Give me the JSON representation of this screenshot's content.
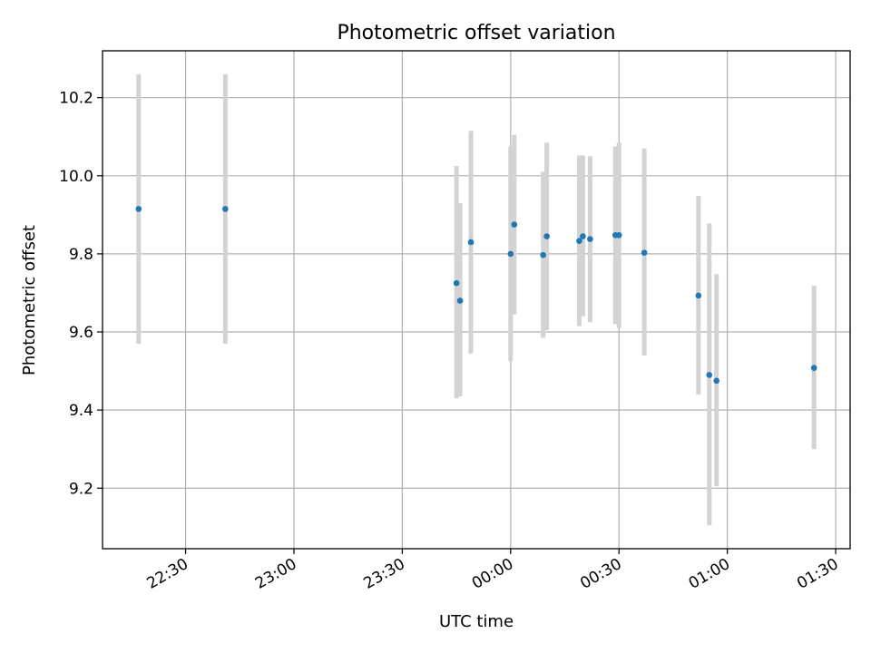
{
  "chart_data": {
    "type": "scatter",
    "title": "Photometric offset variation",
    "xlabel": "UTC time",
    "ylabel": "Photometric offset",
    "xlim": [
      "22:07",
      "01:34"
    ],
    "ylim": [
      9.045,
      10.32
    ],
    "x_ticks": [
      "22:30",
      "23:00",
      "23:30",
      "00:00",
      "00:30",
      "01:00",
      "01:30"
    ],
    "y_ticks": [
      9.2,
      9.4,
      9.6,
      9.8,
      10.0,
      10.2
    ],
    "grid": true,
    "colors": {
      "point": "#1f77b4",
      "errorbar": "#d3d3d3",
      "grid": "#b0b0b0"
    },
    "points": [
      {
        "x": "22:17",
        "y": 9.915,
        "yerr_low": 9.57,
        "yerr_high": 10.26
      },
      {
        "x": "22:41",
        "y": 9.915,
        "yerr_low": 9.57,
        "yerr_high": 10.26
      },
      {
        "x": "23:45",
        "y": 9.725,
        "yerr_low": 9.43,
        "yerr_high": 10.025
      },
      {
        "x": "23:46",
        "y": 9.68,
        "yerr_low": 9.435,
        "yerr_high": 9.93
      },
      {
        "x": "23:49",
        "y": 9.83,
        "yerr_low": 9.545,
        "yerr_high": 10.115
      },
      {
        "x": "00:00",
        "y": 9.8,
        "yerr_low": 9.525,
        "yerr_high": 10.075
      },
      {
        "x": "00:01",
        "y": 9.875,
        "yerr_low": 9.645,
        "yerr_high": 10.105
      },
      {
        "x": "00:09",
        "y": 9.797,
        "yerr_low": 9.585,
        "yerr_high": 10.01
      },
      {
        "x": "00:10",
        "y": 9.845,
        "yerr_low": 9.605,
        "yerr_high": 10.085
      },
      {
        "x": "00:19",
        "y": 9.833,
        "yerr_low": 9.615,
        "yerr_high": 10.052
      },
      {
        "x": "00:20",
        "y": 9.845,
        "yerr_low": 9.64,
        "yerr_high": 10.052
      },
      {
        "x": "00:22",
        "y": 9.838,
        "yerr_low": 9.625,
        "yerr_high": 10.05
      },
      {
        "x": "00:29",
        "y": 9.848,
        "yerr_low": 9.62,
        "yerr_high": 10.075
      },
      {
        "x": "00:30",
        "y": 9.848,
        "yerr_low": 9.61,
        "yerr_high": 10.085
      },
      {
        "x": "00:37",
        "y": 9.803,
        "yerr_low": 9.54,
        "yerr_high": 10.07
      },
      {
        "x": "00:52",
        "y": 9.693,
        "yerr_low": 9.44,
        "yerr_high": 9.948
      },
      {
        "x": "00:55",
        "y": 9.49,
        "yerr_low": 9.105,
        "yerr_high": 9.878
      },
      {
        "x": "00:57",
        "y": 9.475,
        "yerr_low": 9.205,
        "yerr_high": 9.748
      },
      {
        "x": "01:24",
        "y": 9.508,
        "yerr_low": 9.3,
        "yerr_high": 9.718
      }
    ]
  }
}
